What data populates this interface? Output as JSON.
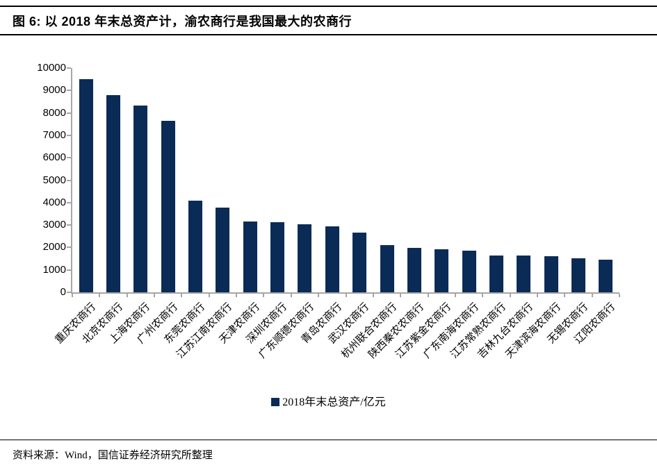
{
  "header": {
    "title": "图 6: 以 2018 年末总资产计，渝农商行是我国最大的农商行"
  },
  "chart_data": {
    "type": "bar",
    "categories": [
      "重庆农商行",
      "北京农商行",
      "上海农商行",
      "广州农商行",
      "东莞农商行",
      "江苏江南农商行",
      "天津农商行",
      "深圳农商行",
      "广东顺德农商行",
      "青岛农商行",
      "武汉农商行",
      "杭州联合农商行",
      "陕西秦农农商行",
      "江苏紫金农商行",
      "广东南海农商行",
      "江苏常熟农商行",
      "吉林九台农商行",
      "天津滨海农商行",
      "无锡农商行",
      "辽阳农商行"
    ],
    "values": [
      9510,
      8800,
      8340,
      7640,
      4080,
      3780,
      3160,
      3140,
      3030,
      2930,
      2660,
      2100,
      1980,
      1920,
      1860,
      1650,
      1630,
      1610,
      1530,
      1440
    ],
    "title": "",
    "xlabel": "",
    "ylabel": "",
    "ylim": [
      0,
      10000
    ],
    "ytick_step": 1000,
    "grid": false,
    "legend_label": "2018年末总资产/亿元",
    "legend_position": "bottom",
    "bar_color": "#0b2b57",
    "axis_color": "#a6a6a6"
  },
  "footer": {
    "source": "资料来源：Wind，国信证券经济研究所整理"
  }
}
